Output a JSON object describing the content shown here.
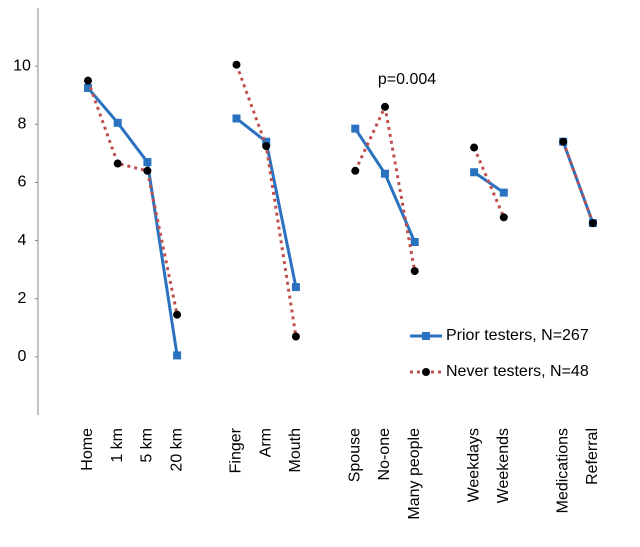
{
  "chart_data": {
    "type": "line",
    "categories": [
      "Home",
      "1 km",
      "5 km",
      "20 km",
      null,
      "Finger",
      "Arm",
      "Mouth",
      null,
      "Spouse",
      "No-one",
      "Many people",
      null,
      "Weekdays",
      "Weekends",
      null,
      "Medications",
      "Referral"
    ],
    "series": [
      {
        "name": "Prior testers, N=267",
        "color": "#2a72c0",
        "marker": "square",
        "marker_color": "#2a72c0",
        "dash": false,
        "values": [
          9.25,
          8.05,
          6.7,
          0.05,
          null,
          8.2,
          7.4,
          2.4,
          null,
          7.85,
          6.3,
          3.95,
          null,
          6.35,
          5.65,
          null,
          7.4,
          4.6
        ]
      },
      {
        "name": "Never testers, N=48",
        "color": "#c0504d",
        "marker": "circle",
        "marker_color": "#000000",
        "dash": true,
        "values": [
          9.5,
          6.65,
          6.4,
          1.45,
          null,
          10.05,
          7.25,
          0.7,
          null,
          6.4,
          8.6,
          2.95,
          null,
          7.2,
          4.8,
          null,
          7.4,
          4.6
        ]
      }
    ],
    "annotation": {
      "text": "p=0.004",
      "category": "No-one"
    },
    "ylim": [
      -2,
      12
    ],
    "yticks": [
      0,
      2,
      4,
      6,
      8,
      10
    ],
    "grid": false,
    "legend": "lower-right"
  }
}
